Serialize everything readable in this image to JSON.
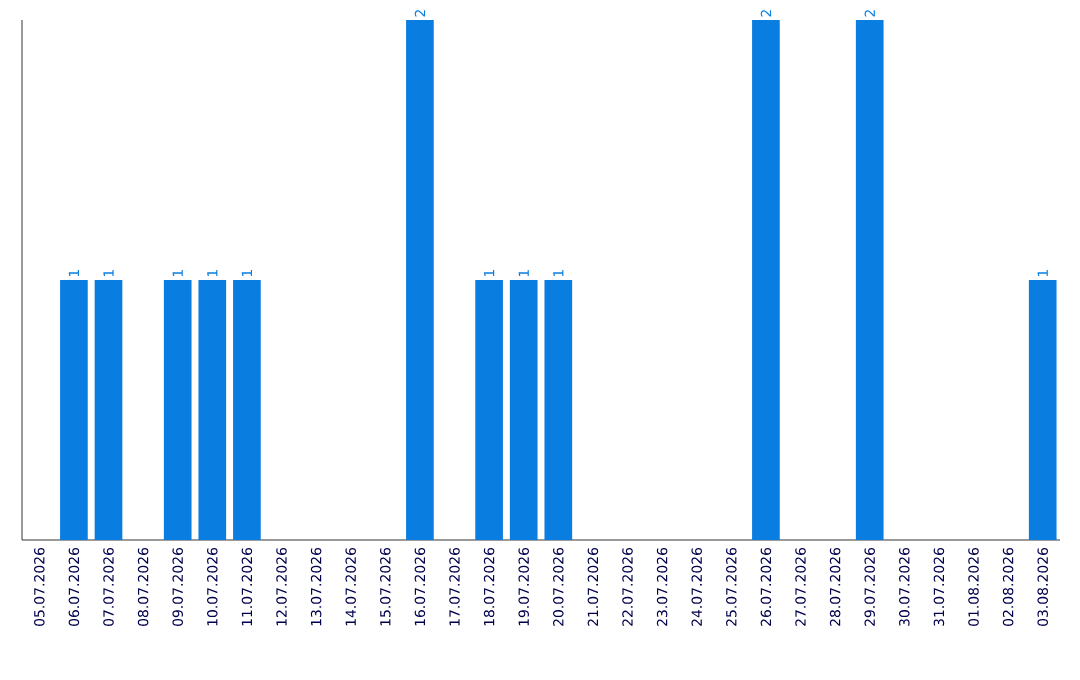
{
  "chart_data": {
    "type": "bar",
    "categories": [
      "05.07.2026",
      "06.07.2026",
      "07.07.2026",
      "08.07.2026",
      "09.07.2026",
      "10.07.2026",
      "11.07.2026",
      "12.07.2026",
      "13.07.2026",
      "14.07.2026",
      "15.07.2026",
      "16.07.2026",
      "17.07.2026",
      "18.07.2026",
      "19.07.2026",
      "20.07.2026",
      "21.07.2026",
      "22.07.2026",
      "23.07.2026",
      "24.07.2026",
      "25.07.2026",
      "26.07.2026",
      "27.07.2026",
      "28.07.2026",
      "29.07.2026",
      "30.07.2026",
      "31.07.2026",
      "01.08.2026",
      "02.08.2026",
      "03.08.2026"
    ],
    "values": [
      0,
      1,
      1,
      0,
      1,
      1,
      1,
      0,
      0,
      0,
      0,
      2,
      0,
      1,
      1,
      1,
      0,
      0,
      0,
      0,
      0,
      2,
      0,
      0,
      2,
      0,
      0,
      0,
      0,
      1
    ],
    "value_labels": [
      null,
      "1",
      "1",
      null,
      "1",
      "1",
      "1",
      null,
      null,
      null,
      null,
      "2",
      null,
      "1",
      "1",
      "1",
      null,
      null,
      null,
      null,
      null,
      "2",
      null,
      null,
      "2",
      null,
      null,
      null,
      null,
      "1"
    ],
    "color": "#0a7ee0"
  }
}
